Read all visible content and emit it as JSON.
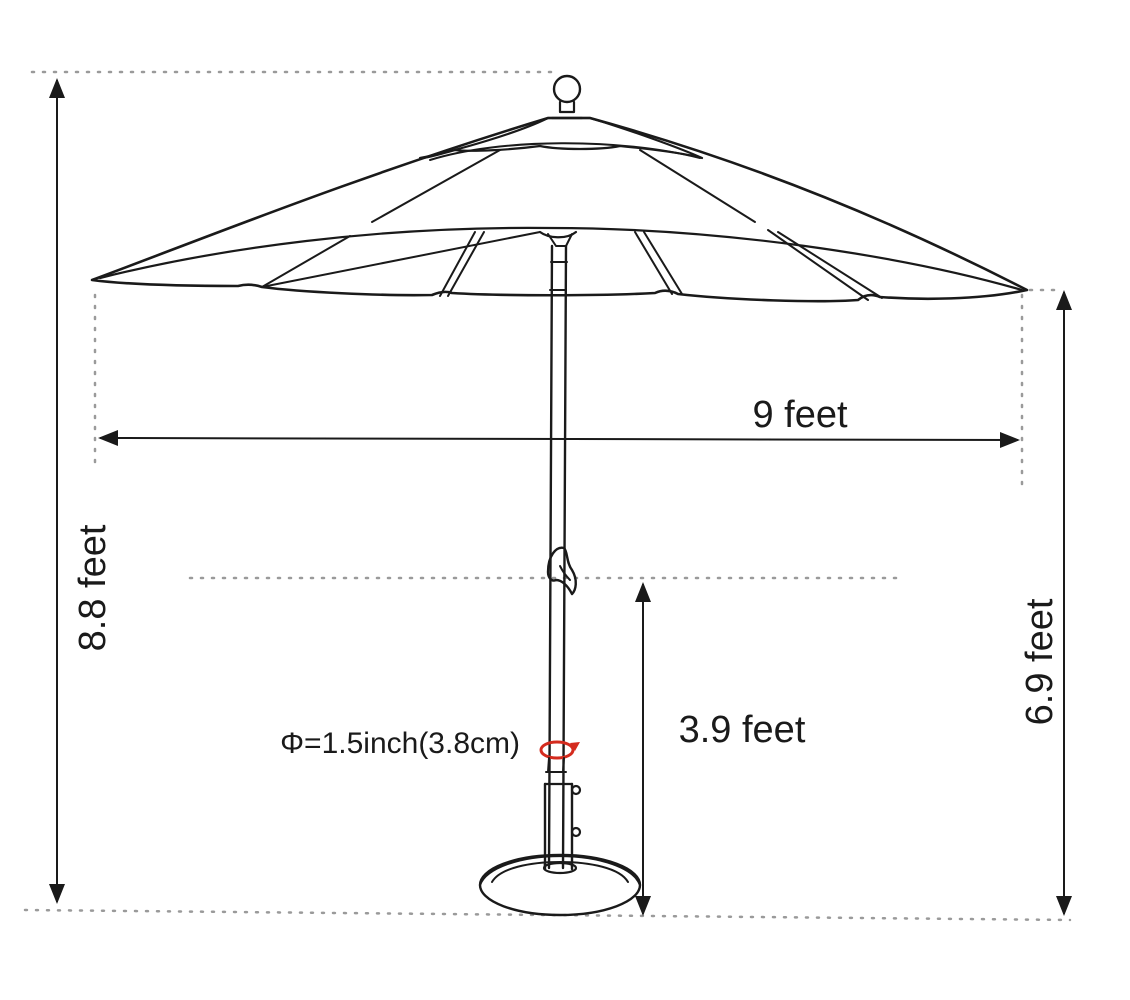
{
  "diagram": {
    "labels": {
      "total_height": "8.8 feet",
      "canopy_width": "9 feet",
      "crank_height": "3.9 feet",
      "rib_height": "6.9 feet",
      "pole_diameter": "Φ=1.5inch(3.8cm)"
    },
    "colors": {
      "ink": "#1a1a1a",
      "guide": "#9a9a9a",
      "tilt_arrow": "#d42b1e"
    },
    "icons": [
      "finial-icon",
      "crank-handle-icon",
      "tilt-rotate-icon",
      "stand-base-icon"
    ]
  }
}
